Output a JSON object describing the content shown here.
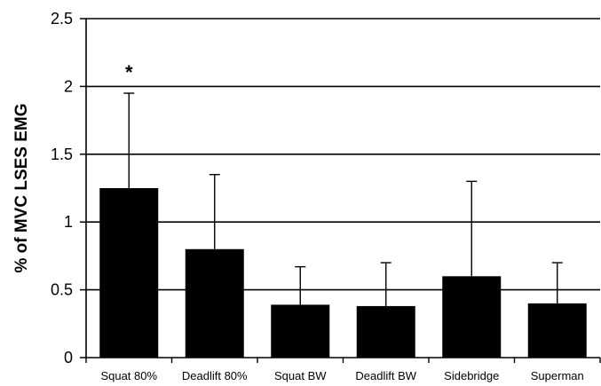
{
  "chart_data": {
    "type": "bar",
    "categories": [
      "Squat 80%",
      "Deadlift 80%",
      "Squat BW",
      "Deadlift BW",
      "Sidebridge",
      "Superman"
    ],
    "values": [
      1.25,
      0.8,
      0.39,
      0.38,
      0.6,
      0.4
    ],
    "error_upper": [
      1.95,
      1.35,
      0.67,
      0.7,
      1.3,
      0.7
    ],
    "title": "",
    "xlabel": "",
    "ylabel": "% of MVC LSES EMG",
    "ylim": [
      0,
      2.5
    ],
    "yticks": [
      "0",
      "0.5",
      "1",
      "1.5",
      "2",
      "2.5"
    ],
    "grid": "horizontal",
    "annotations": [
      {
        "category": "Squat 80%",
        "text": "*"
      }
    ],
    "colors": {
      "bar": "#000000",
      "grid": "#000000"
    }
  }
}
